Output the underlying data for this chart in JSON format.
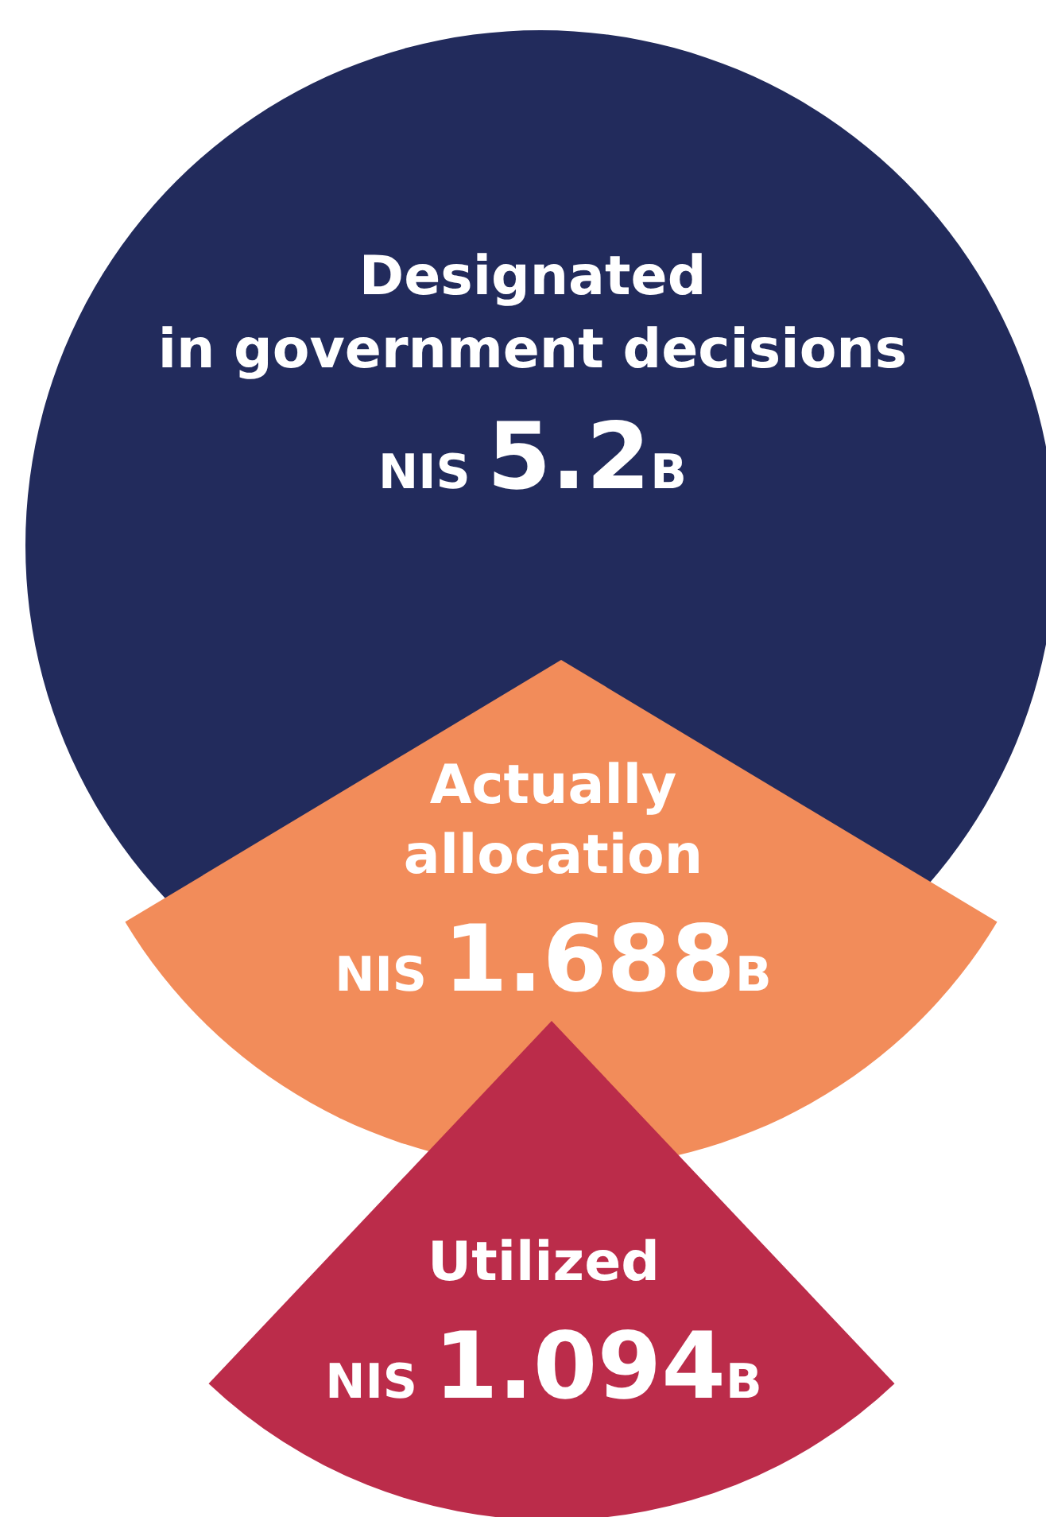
{
  "chart_data": {
    "type": "other",
    "categories": [
      "Designated\nin government decisions",
      "Actually\nallocation",
      "Utilized"
    ],
    "values": [
      5200000000,
      1688000000,
      1094000000
    ],
    "value_labels": [
      "NIS 5.2B",
      "NIS 1.688B",
      "NIS 1.094B"
    ],
    "colors": [
      "#222b5c",
      "#f28c5a",
      "#bb2c4a"
    ]
  }
}
